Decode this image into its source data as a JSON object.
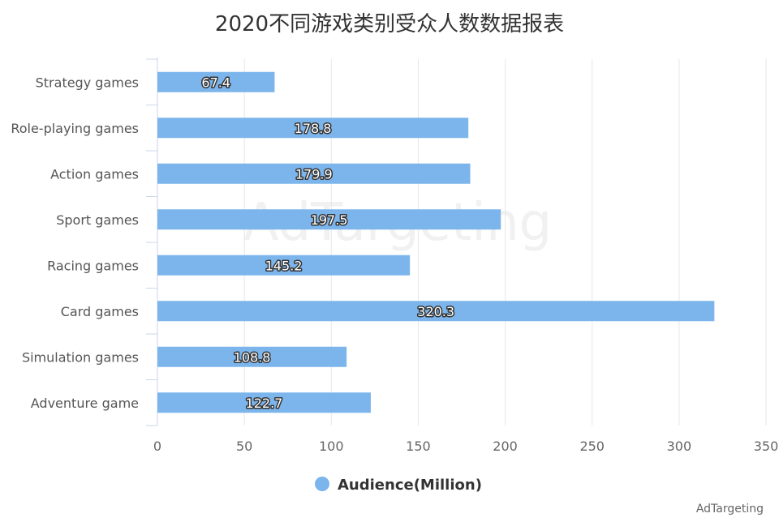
{
  "chart_data": {
    "type": "bar",
    "orientation": "horizontal",
    "title": "2020不同游戏类别受众人数数据报表",
    "categories": [
      "Strategy games",
      "Role-playing games",
      "Action games",
      "Sport games",
      "Racing games",
      "Card games",
      "Simulation games",
      "Adventure game"
    ],
    "series": [
      {
        "name": "Audience(Million)",
        "values": [
          67.4,
          178.8,
          179.9,
          197.5,
          145.2,
          320.3,
          108.8,
          122.7
        ]
      }
    ],
    "xlim": [
      0,
      350
    ],
    "x_ticks": [
      0,
      50,
      100,
      150,
      200,
      250,
      300,
      350
    ],
    "grid": true,
    "legend_position": "bottom",
    "bar_color": "#7cb5ec"
  },
  "watermark": "AdTargeting",
  "credit": "AdTargeting"
}
